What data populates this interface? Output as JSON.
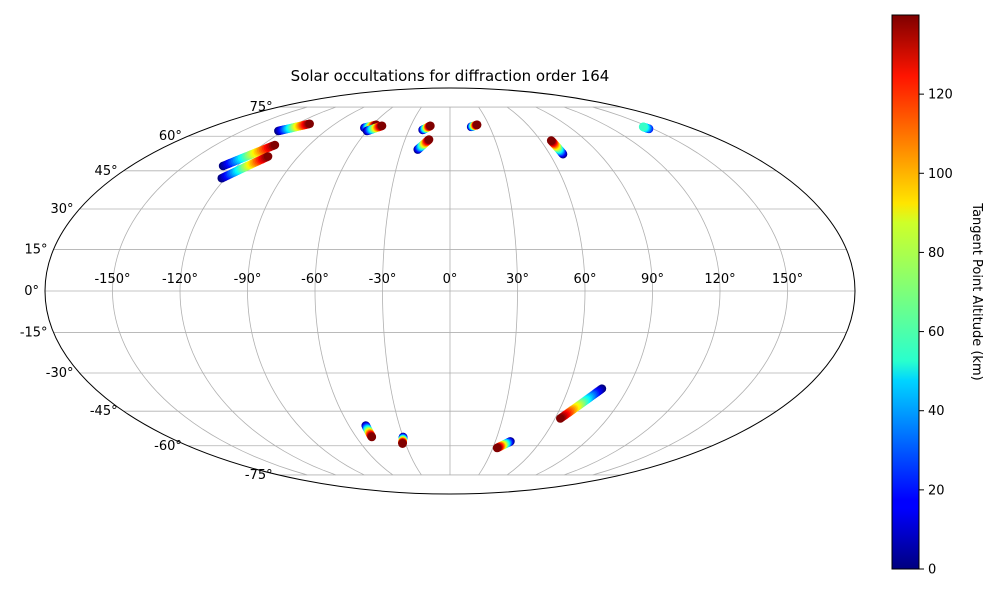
{
  "chart_data": {
    "type": "scatter",
    "projection": "mollweide",
    "title": "Solar occultations for diffraction order 164",
    "xlabel": "",
    "ylabel": "",
    "grid": true,
    "xlim": [
      -180,
      180
    ],
    "ylim": [
      -90,
      90
    ],
    "lon_ticks": [
      {
        "value": -150,
        "label": "-150°"
      },
      {
        "value": -120,
        "label": "-120°"
      },
      {
        "value": -90,
        "label": "-90°"
      },
      {
        "value": -60,
        "label": "-60°"
      },
      {
        "value": -30,
        "label": "-30°"
      },
      {
        "value": 0,
        "label": "0°"
      },
      {
        "value": 30,
        "label": "30°"
      },
      {
        "value": 60,
        "label": "60°"
      },
      {
        "value": 90,
        "label": "90°"
      },
      {
        "value": 120,
        "label": "120°"
      },
      {
        "value": 150,
        "label": "150°"
      }
    ],
    "lat_ticks": [
      {
        "value": 75,
        "label": "75°"
      },
      {
        "value": 60,
        "label": "60°"
      },
      {
        "value": 45,
        "label": "45°"
      },
      {
        "value": 30,
        "label": "30°"
      },
      {
        "value": 15,
        "label": "15°"
      },
      {
        "value": 0,
        "label": "0°"
      },
      {
        "value": -15,
        "label": "-15°"
      },
      {
        "value": -30,
        "label": "-30°"
      },
      {
        "value": -45,
        "label": "-45°"
      },
      {
        "value": -60,
        "label": "-60°"
      },
      {
        "value": -75,
        "label": "-75°"
      }
    ],
    "colorbar": {
      "label": "Tangent Point Altitude (km)",
      "colormap": "jet",
      "range": [
        0,
        140
      ],
      "ticks": [
        {
          "value": 0,
          "label": "0"
        },
        {
          "value": 20,
          "label": "20"
        },
        {
          "value": 40,
          "label": "40"
        },
        {
          "value": 60,
          "label": "60"
        },
        {
          "value": 80,
          "label": "80"
        },
        {
          "value": 100,
          "label": "100"
        },
        {
          "value": 120,
          "label": "120"
        }
      ]
    },
    "tracks": [
      {
        "start": {
          "lon": -124,
          "lat": 62.5,
          "alt": 0
        },
        "end": {
          "lon": -110,
          "lat": 66,
          "alt": 140
        }
      },
      {
        "start": {
          "lon": -128,
          "lat": 47,
          "alt": 0
        },
        "end": {
          "lon": -112,
          "lat": 56,
          "alt": 140
        }
      },
      {
        "start": {
          "lon": -122,
          "lat": 42,
          "alt": 0
        },
        "end": {
          "lon": -108,
          "lat": 51,
          "alt": 140
        }
      },
      {
        "start": {
          "lon": -64,
          "lat": 64,
          "alt": 0
        },
        "end": {
          "lon": -57,
          "lat": 65.5,
          "alt": 140
        }
      },
      {
        "start": {
          "lon": -60,
          "lat": 62.5,
          "alt": 0
        },
        "end": {
          "lon": -52,
          "lat": 65,
          "alt": 140
        }
      },
      {
        "start": {
          "lon": -20,
          "lat": 63,
          "alt": 0
        },
        "end": {
          "lon": -15,
          "lat": 65,
          "alt": 140
        }
      },
      {
        "start": {
          "lon": -20,
          "lat": 54,
          "alt": 0
        },
        "end": {
          "lon": -14,
          "lat": 58.5,
          "alt": 140
        }
      },
      {
        "start": {
          "lon": 16,
          "lat": 64.5,
          "alt": 0
        },
        "end": {
          "lon": 21,
          "lat": 65.5,
          "alt": 140
        }
      },
      {
        "start": {
          "lon": 68,
          "lat": 52,
          "alt": 0
        },
        "end": {
          "lon": 67,
          "lat": 58,
          "alt": 140
        }
      },
      {
        "start": {
          "lon": 147,
          "lat": 63.5,
          "alt": 20
        },
        "end": {
          "lon": 146,
          "lat": 64.5,
          "alt": 60
        }
      },
      {
        "start": {
          "lon": -50,
          "lat": -51,
          "alt": 0
        },
        "end": {
          "lon": -50,
          "lat": -56,
          "alt": 140
        }
      },
      {
        "start": {
          "lon": -30,
          "lat": -56,
          "alt": 0
        },
        "end": {
          "lon": -32,
          "lat": -59,
          "alt": 140
        }
      },
      {
        "start": {
          "lon": 40,
          "lat": -58,
          "alt": 0
        },
        "end": {
          "lon": 33,
          "lat": -61,
          "alt": 140
        }
      },
      {
        "start": {
          "lon": 77,
          "lat": -36,
          "alt": 0
        },
        "end": {
          "lon": 63,
          "lat": -48,
          "alt": 140
        }
      }
    ]
  }
}
